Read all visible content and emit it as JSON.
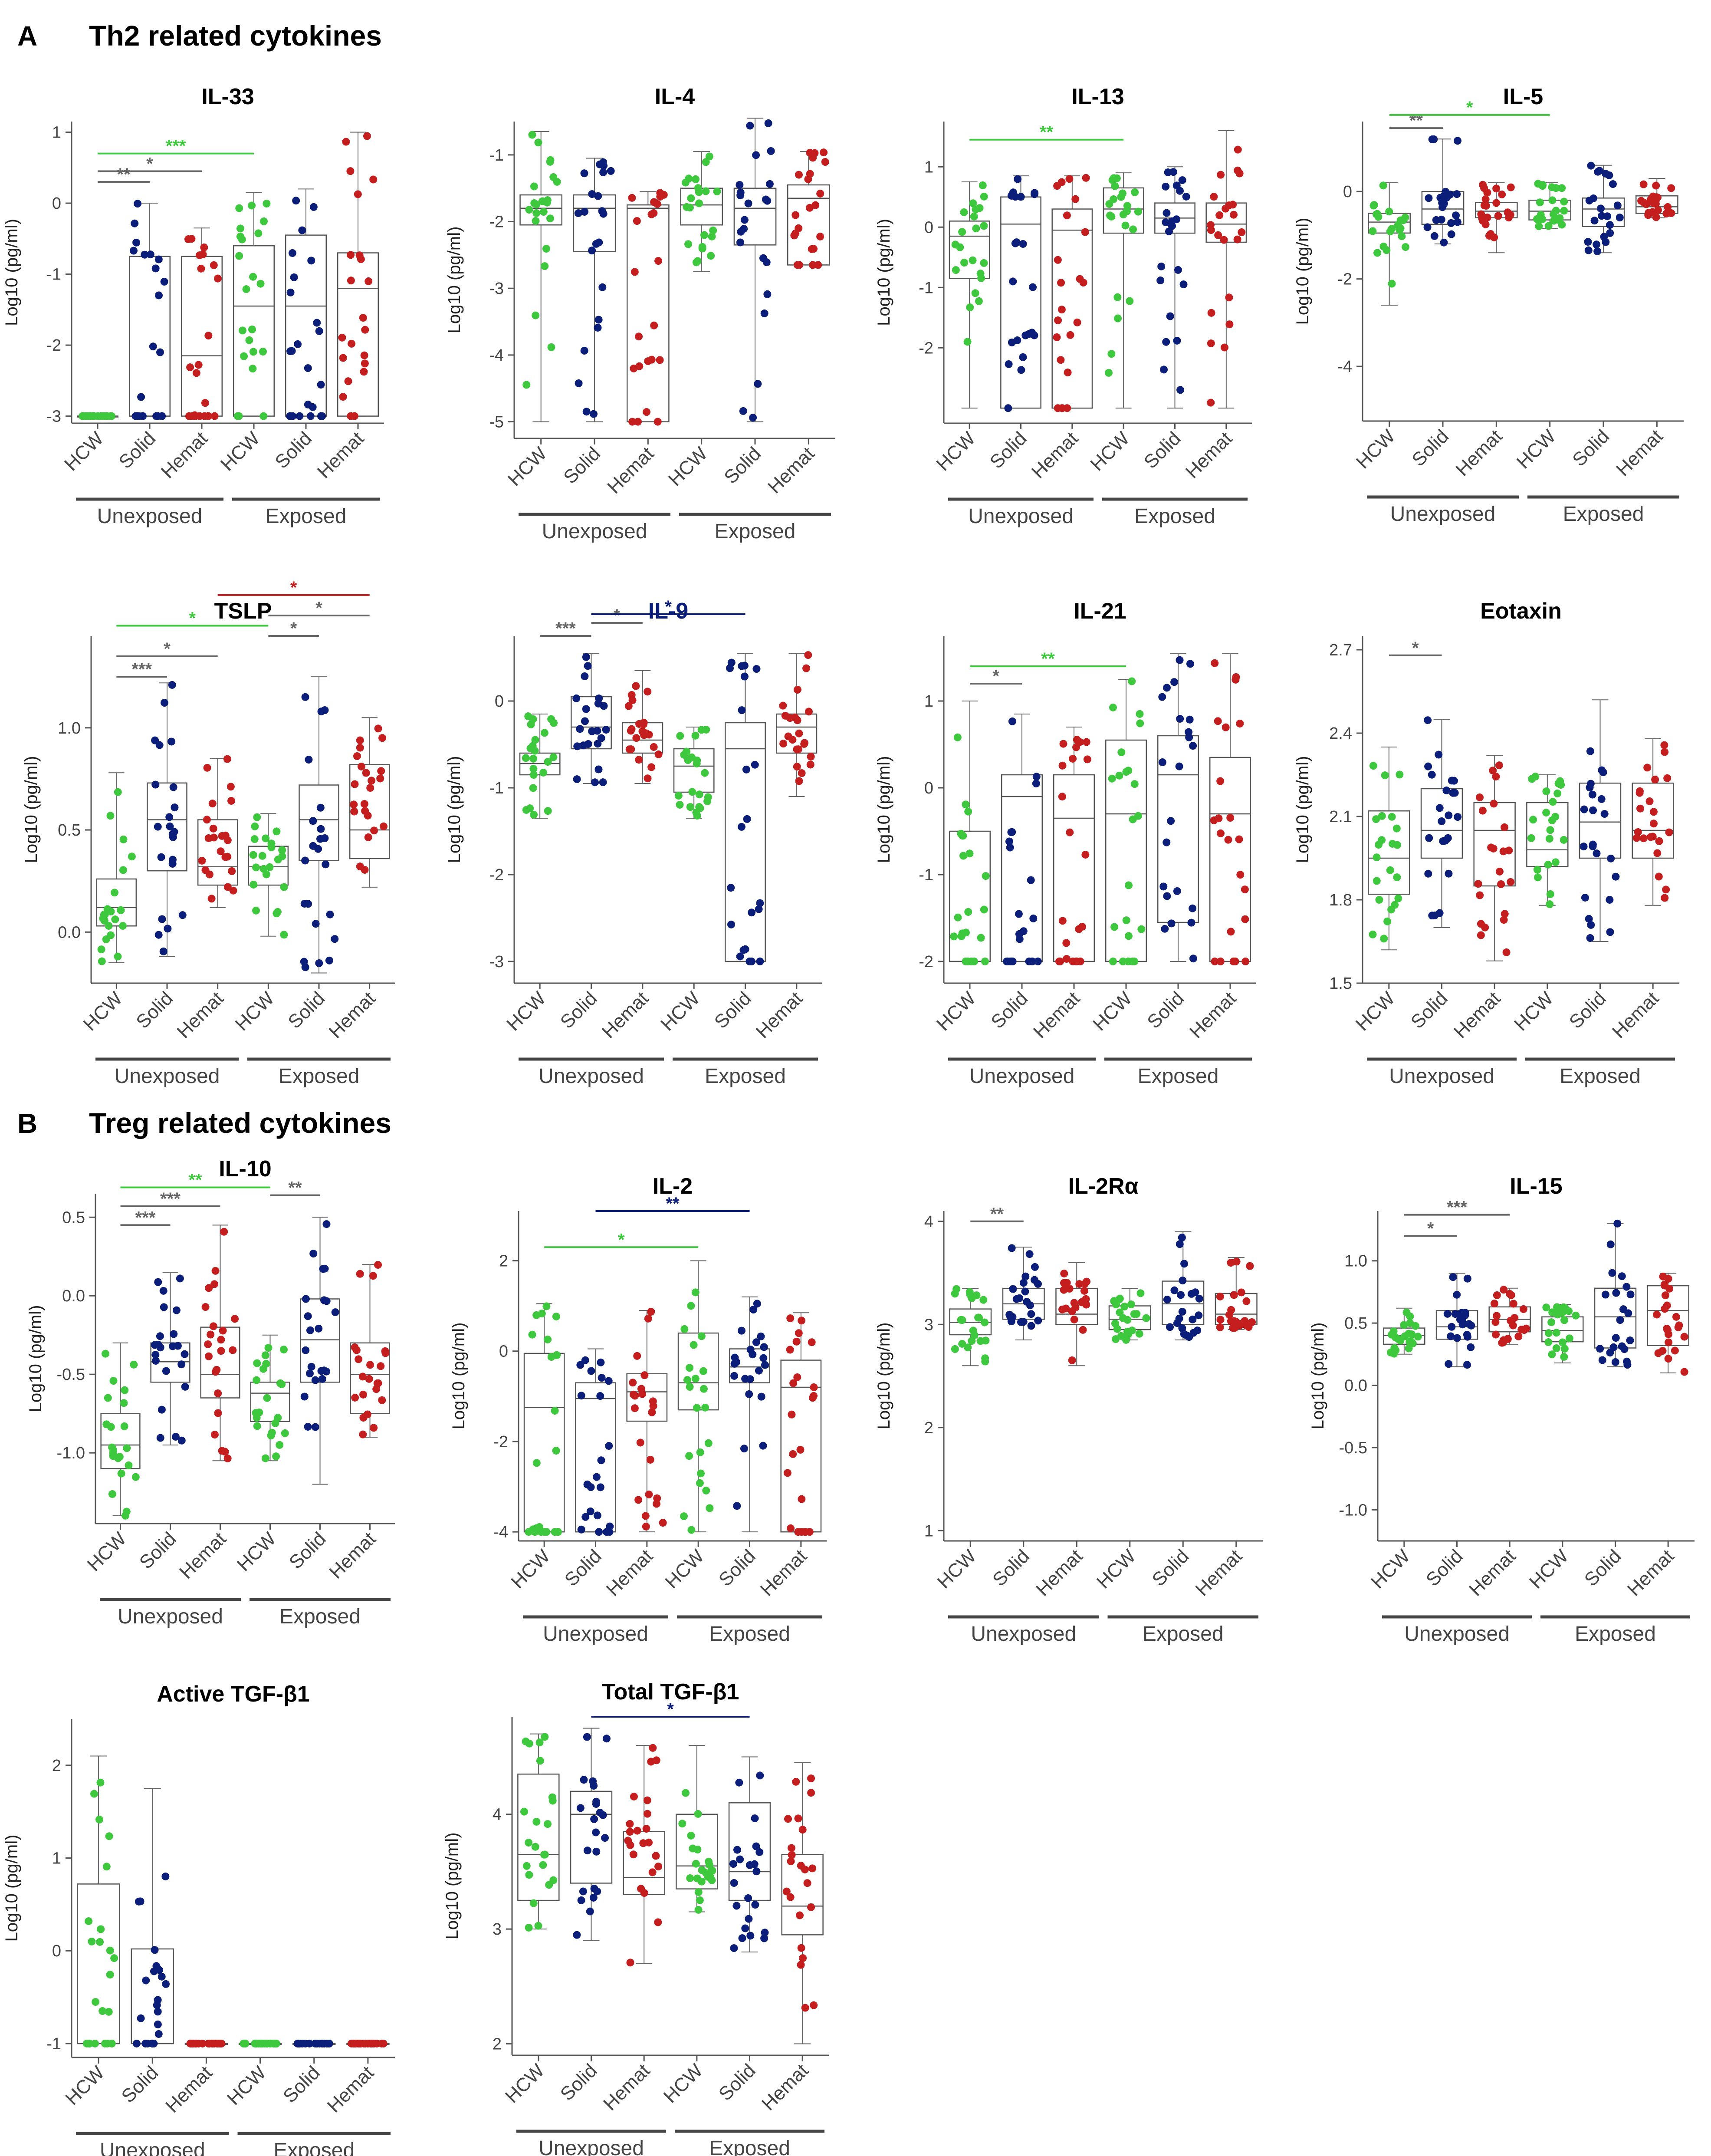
{
  "figure": {
    "panels": [
      {
        "letter": "A",
        "title": "Th2 related cytokines"
      },
      {
        "letter": "B",
        "title": "Treg related cytokines"
      }
    ],
    "ylabel": "Log10 (pg/ml)",
    "categories": [
      "HCW",
      "Solid",
      "Hemat",
      "HCW",
      "Solid",
      "Hemat"
    ],
    "groups": [
      "Unexposed",
      "Exposed"
    ],
    "series_colors": {
      "HCW": "#3ec83e",
      "Solid": "#0b1f7a",
      "Hemat": "#c41e1e"
    },
    "bracket_colors": {
      "gray": "#666666",
      "green": "#3ec83e",
      "navy": "#0b1f7a",
      "red": "#c41e1e"
    }
  },
  "chart_data": [
    {
      "type": "box",
      "title": "IL-33",
      "title_color": "#000000",
      "yticks": [
        -3,
        -2,
        -1,
        0,
        1
      ],
      "ylim": [
        -3.1,
        1.15
      ],
      "boxes": [
        {
          "q1": -3,
          "med": -3,
          "q3": -3,
          "lo": -3,
          "hi": -3
        },
        {
          "q1": -3,
          "med": -3,
          "q3": -0.75,
          "lo": -3,
          "hi": 0
        },
        {
          "q1": -3,
          "med": -2.15,
          "q3": -0.75,
          "lo": -3,
          "hi": -0.35
        },
        {
          "q1": -3,
          "med": -1.45,
          "q3": -0.6,
          "lo": -3,
          "hi": 0.15
        },
        {
          "q1": -3,
          "med": -1.45,
          "q3": -0.45,
          "lo": -3,
          "hi": 0.2
        },
        {
          "q1": -3,
          "med": -1.2,
          "q3": -0.7,
          "lo": -3,
          "hi": 1.0
        }
      ],
      "sig": [
        {
          "i": 0,
          "j": 1,
          "label": "**",
          "color": "gray",
          "y": 0.3
        },
        {
          "i": 0,
          "j": 2,
          "label": "*",
          "color": "gray",
          "y": 0.45
        },
        {
          "i": 0,
          "j": 3,
          "label": "***",
          "color": "green",
          "y": 0.7
        }
      ]
    },
    {
      "type": "box",
      "title": "IL-4",
      "title_color": "#000000",
      "yticks": [
        -5,
        -4,
        -3,
        -2,
        -1
      ],
      "ylim": [
        -5.25,
        -0.5
      ],
      "boxes": [
        {
          "q1": -2.05,
          "med": -1.8,
          "q3": -1.6,
          "lo": -5,
          "hi": -0.65
        },
        {
          "q1": -2.45,
          "med": -1.8,
          "q3": -1.6,
          "lo": -5,
          "hi": -1.05
        },
        {
          "q1": -5,
          "med": -1.8,
          "q3": -1.75,
          "lo": -5,
          "hi": -1.55
        },
        {
          "q1": -2.05,
          "med": -1.75,
          "q3": -1.5,
          "lo": -2.75,
          "hi": -0.95
        },
        {
          "q1": -2.35,
          "med": -1.8,
          "q3": -1.5,
          "lo": -5,
          "hi": -0.45
        },
        {
          "q1": -2.65,
          "med": -1.65,
          "q3": -1.45,
          "lo": -2.65,
          "hi": -0.95
        }
      ],
      "sig": []
    },
    {
      "type": "box",
      "title": "IL-13",
      "title_color": "#000000",
      "yticks": [
        -2,
        -1,
        0,
        1
      ],
      "ylim": [
        -3.25,
        1.75
      ],
      "boxes": [
        {
          "q1": -0.85,
          "med": -0.15,
          "q3": 0.1,
          "lo": -3,
          "hi": 0.75
        },
        {
          "q1": -3,
          "med": 0.05,
          "q3": 0.5,
          "lo": -3,
          "hi": 0.85
        },
        {
          "q1": -3,
          "med": -0.05,
          "q3": 0.3,
          "lo": -3,
          "hi": 0.85
        },
        {
          "q1": -0.1,
          "med": 0.3,
          "q3": 0.65,
          "lo": -3,
          "hi": 0.9
        },
        {
          "q1": -0.1,
          "med": 0.15,
          "q3": 0.4,
          "lo": -3,
          "hi": 1.0
        },
        {
          "q1": -0.25,
          "med": 0.05,
          "q3": 0.4,
          "lo": -3,
          "hi": 1.6
        }
      ],
      "sig": [
        {
          "i": 0,
          "j": 3,
          "label": "**",
          "color": "green",
          "y": 1.45
        }
      ]
    },
    {
      "type": "box",
      "title": "IL-5",
      "title_color": "#000000",
      "yticks": [
        -4,
        -2,
        0
      ],
      "ylim": [
        -5.25,
        1.6
      ],
      "boxes": [
        {
          "q1": -0.95,
          "med": -0.7,
          "q3": -0.5,
          "lo": -2.6,
          "hi": 0.2
        },
        {
          "q1": -0.75,
          "med": -0.4,
          "q3": 0.0,
          "lo": -1.2,
          "hi": 1.2
        },
        {
          "q1": -0.6,
          "med": -0.45,
          "q3": -0.25,
          "lo": -1.4,
          "hi": 0.2
        },
        {
          "q1": -0.65,
          "med": -0.45,
          "q3": -0.2,
          "lo": -0.85,
          "hi": 0.2
        },
        {
          "q1": -0.8,
          "med": -0.4,
          "q3": -0.15,
          "lo": -1.4,
          "hi": 0.6
        },
        {
          "q1": -0.5,
          "med": -0.35,
          "q3": -0.1,
          "lo": -0.6,
          "hi": 0.3
        }
      ],
      "sig": [
        {
          "i": 0,
          "j": 1,
          "label": "**",
          "color": "gray",
          "y": 1.45
        },
        {
          "i": 0,
          "j": 3,
          "label": "*",
          "color": "green",
          "y": 1.75
        }
      ]
    },
    {
      "type": "box",
      "title": "TSLP",
      "title_color": "#000000",
      "yticks": [
        0.0,
        0.5,
        1.0
      ],
      "ylim": [
        -0.25,
        1.45
      ],
      "boxes": [
        {
          "q1": 0.03,
          "med": 0.12,
          "q3": 0.26,
          "lo": -0.15,
          "hi": 0.78
        },
        {
          "q1": 0.3,
          "med": 0.55,
          "q3": 0.73,
          "lo": -0.12,
          "hi": 1.22
        },
        {
          "q1": 0.23,
          "med": 0.32,
          "q3": 0.55,
          "lo": 0.12,
          "hi": 0.85
        },
        {
          "q1": 0.23,
          "med": 0.32,
          "q3": 0.42,
          "lo": -0.02,
          "hi": 0.58
        },
        {
          "q1": 0.35,
          "med": 0.55,
          "q3": 0.72,
          "lo": -0.2,
          "hi": 1.25
        },
        {
          "q1": 0.36,
          "med": 0.5,
          "q3": 0.82,
          "lo": 0.22,
          "hi": 1.05
        }
      ],
      "sig": [
        {
          "i": 0,
          "j": 1,
          "label": "***",
          "color": "gray",
          "y": 1.25
        },
        {
          "i": 0,
          "j": 2,
          "label": "*",
          "color": "gray",
          "y": 1.35
        },
        {
          "i": 0,
          "j": 3,
          "label": "*",
          "color": "green",
          "y": 1.5
        },
        {
          "i": 3,
          "j": 4,
          "label": "*",
          "color": "gray",
          "y": 1.45
        },
        {
          "i": 3,
          "j": 5,
          "label": "*",
          "color": "gray",
          "y": 1.55
        },
        {
          "i": 2,
          "j": 5,
          "label": "*",
          "color": "red",
          "y": 1.65
        }
      ]
    },
    {
      "type": "box",
      "title": "IL-9",
      "title_color": "#0b1f7a",
      "yticks": [
        -3,
        -2,
        -1,
        0
      ],
      "ylim": [
        -3.25,
        0.75
      ],
      "boxes": [
        {
          "q1": -0.85,
          "med": -0.72,
          "q3": -0.6,
          "lo": -1.35,
          "hi": -0.15
        },
        {
          "q1": -0.55,
          "med": -0.3,
          "q3": 0.05,
          "lo": -0.95,
          "hi": 0.55
        },
        {
          "q1": -0.6,
          "med": -0.45,
          "q3": -0.25,
          "lo": -0.95,
          "hi": 0.35
        },
        {
          "q1": -1.05,
          "med": -0.75,
          "q3": -0.55,
          "lo": -1.35,
          "hi": -0.3
        },
        {
          "q1": -3,
          "med": -0.55,
          "q3": -0.25,
          "lo": -3,
          "hi": 0.55
        },
        {
          "q1": -0.6,
          "med": -0.3,
          "q3": -0.15,
          "lo": -1.1,
          "hi": 0.55
        }
      ],
      "sig": [
        {
          "i": 0,
          "j": 1,
          "label": "***",
          "color": "gray",
          "y": 0.75
        },
        {
          "i": 1,
          "j": 2,
          "label": "*",
          "color": "gray",
          "y": 0.9
        },
        {
          "i": 1,
          "j": 4,
          "label": "*",
          "color": "navy",
          "y": 1.0
        }
      ]
    },
    {
      "type": "box",
      "title": "IL-21",
      "title_color": "#000000",
      "yticks": [
        -2,
        -1,
        0,
        1
      ],
      "ylim": [
        -2.25,
        1.75
      ],
      "boxes": [
        {
          "q1": -2,
          "med": -2,
          "q3": -0.5,
          "lo": -2,
          "hi": 1.0
        },
        {
          "q1": -2,
          "med": -0.1,
          "q3": 0.15,
          "lo": -2,
          "hi": 0.85
        },
        {
          "q1": -2,
          "med": -0.35,
          "q3": 0.15,
          "lo": -2,
          "hi": 0.7
        },
        {
          "q1": -2,
          "med": -0.3,
          "q3": 0.55,
          "lo": -2,
          "hi": 1.25
        },
        {
          "q1": -1.55,
          "med": 0.15,
          "q3": 0.6,
          "lo": -2,
          "hi": 1.55
        },
        {
          "q1": -2,
          "med": -0.3,
          "q3": 0.35,
          "lo": -2,
          "hi": 1.55
        }
      ],
      "sig": [
        {
          "i": 0,
          "j": 1,
          "label": "*",
          "color": "gray",
          "y": 1.2
        },
        {
          "i": 0,
          "j": 3,
          "label": "**",
          "color": "green",
          "y": 1.4
        }
      ]
    },
    {
      "type": "box",
      "title": "Eotaxin",
      "title_color": "#000000",
      "yticks": [
        1.5,
        1.8,
        2.1,
        2.4,
        2.7
      ],
      "ylim": [
        1.5,
        2.75
      ],
      "boxes": [
        {
          "q1": 1.82,
          "med": 1.95,
          "q3": 2.12,
          "lo": 1.62,
          "hi": 2.35
        },
        {
          "q1": 1.95,
          "med": 2.05,
          "q3": 2.2,
          "lo": 1.7,
          "hi": 2.45
        },
        {
          "q1": 1.85,
          "med": 2.05,
          "q3": 2.15,
          "lo": 1.58,
          "hi": 2.32
        },
        {
          "q1": 1.92,
          "med": 1.98,
          "q3": 2.15,
          "lo": 1.78,
          "hi": 2.25
        },
        {
          "q1": 1.95,
          "med": 2.08,
          "q3": 2.22,
          "lo": 1.65,
          "hi": 2.52
        },
        {
          "q1": 1.95,
          "med": 2.05,
          "q3": 2.22,
          "lo": 1.78,
          "hi": 2.38
        }
      ],
      "sig": [
        {
          "i": 0,
          "j": 1,
          "label": "*",
          "color": "gray",
          "y": 2.68
        }
      ]
    },
    {
      "type": "box",
      "title": "IL-10",
      "title_color": "#000000",
      "yticks": [
        -1.0,
        -0.5,
        0.0,
        0.5
      ],
      "ylim": [
        -1.45,
        0.65
      ],
      "boxes": [
        {
          "q1": -1.1,
          "med": -0.95,
          "q3": -0.75,
          "lo": -1.4,
          "hi": -0.3
        },
        {
          "q1": -0.55,
          "med": -0.42,
          "q3": -0.3,
          "lo": -0.95,
          "hi": 0.15
        },
        {
          "q1": -0.65,
          "med": -0.5,
          "q3": -0.2,
          "lo": -1.05,
          "hi": 0.45
        },
        {
          "q1": -0.8,
          "med": -0.62,
          "q3": -0.55,
          "lo": -1.05,
          "hi": -0.25
        },
        {
          "q1": -0.55,
          "med": -0.28,
          "q3": -0.02,
          "lo": -1.2,
          "hi": 0.5
        },
        {
          "q1": -0.75,
          "med": -0.5,
          "q3": -0.3,
          "lo": -0.9,
          "hi": 0.2
        }
      ],
      "sig": [
        {
          "i": 0,
          "j": 1,
          "label": "***",
          "color": "gray",
          "y": 0.45
        },
        {
          "i": 0,
          "j": 2,
          "label": "***",
          "color": "gray",
          "y": 0.57
        },
        {
          "i": 0,
          "j": 3,
          "label": "**",
          "color": "green",
          "y": 0.69
        },
        {
          "i": 3,
          "j": 4,
          "label": "**",
          "color": "gray",
          "y": 0.64
        }
      ]
    },
    {
      "type": "box",
      "title": "IL-2",
      "title_color": "#000000",
      "yticks": [
        -4,
        -2,
        0,
        2
      ],
      "ylim": [
        -4.2,
        3.1
      ],
      "boxes": [
        {
          "q1": -4,
          "med": -1.25,
          "q3": -0.05,
          "lo": -4,
          "hi": 1.05
        },
        {
          "q1": -4,
          "med": -1.05,
          "q3": -0.7,
          "lo": -4,
          "hi": 0.05
        },
        {
          "q1": -1.55,
          "med": -0.9,
          "q3": -0.5,
          "lo": -4,
          "hi": 0.9
        },
        {
          "q1": -1.3,
          "med": -0.7,
          "q3": 0.4,
          "lo": -4,
          "hi": 2.0
        },
        {
          "q1": -0.7,
          "med": -0.35,
          "q3": 0.05,
          "lo": -4,
          "hi": 1.2
        },
        {
          "q1": -4,
          "med": -0.8,
          "q3": -0.2,
          "lo": -4,
          "hi": 0.85
        }
      ],
      "sig": [
        {
          "i": 0,
          "j": 3,
          "label": "*",
          "color": "green",
          "y": 2.3
        },
        {
          "i": 1,
          "j": 4,
          "label": "**",
          "color": "navy",
          "y": 3.1
        }
      ]
    },
    {
      "type": "box",
      "title": "IL-2Rα",
      "title_color": "#000000",
      "yticks": [
        1,
        2,
        3,
        4
      ],
      "ylim": [
        0.9,
        4.1
      ],
      "boxes": [
        {
          "q1": 2.9,
          "med": 3.02,
          "q3": 3.15,
          "lo": 2.6,
          "hi": 3.35
        },
        {
          "q1": 3.05,
          "med": 3.2,
          "q3": 3.35,
          "lo": 2.85,
          "hi": 3.75
        },
        {
          "q1": 3.0,
          "med": 3.1,
          "q3": 3.35,
          "lo": 2.6,
          "hi": 3.6
        },
        {
          "q1": 2.95,
          "med": 3.05,
          "q3": 3.18,
          "lo": 2.85,
          "hi": 3.35
        },
        {
          "q1": 3.0,
          "med": 3.2,
          "q3": 3.42,
          "lo": 2.85,
          "hi": 3.9
        },
        {
          "q1": 3.0,
          "med": 3.1,
          "q3": 3.3,
          "lo": 2.95,
          "hi": 3.65
        }
      ],
      "sig": [
        {
          "i": 0,
          "j": 1,
          "label": "**",
          "color": "gray",
          "y": 4.0
        }
      ]
    },
    {
      "type": "box",
      "title": "IL-15",
      "title_color": "#000000",
      "yticks": [
        -1.0,
        -0.5,
        0.0,
        0.5,
        1.0
      ],
      "ylim": [
        -1.25,
        1.4
      ],
      "boxes": [
        {
          "q1": 0.33,
          "med": 0.4,
          "q3": 0.46,
          "lo": 0.25,
          "hi": 0.62
        },
        {
          "q1": 0.37,
          "med": 0.47,
          "q3": 0.6,
          "lo": 0.15,
          "hi": 0.9
        },
        {
          "q1": 0.43,
          "med": 0.53,
          "q3": 0.63,
          "lo": 0.33,
          "hi": 0.78
        },
        {
          "q1": 0.35,
          "med": 0.44,
          "q3": 0.55,
          "lo": 0.18,
          "hi": 0.65
        },
        {
          "q1": 0.3,
          "med": 0.55,
          "q3": 0.78,
          "lo": 0.15,
          "hi": 1.3
        },
        {
          "q1": 0.32,
          "med": 0.6,
          "q3": 0.8,
          "lo": 0.1,
          "hi": 0.9
        }
      ],
      "sig": [
        {
          "i": 0,
          "j": 1,
          "label": "*",
          "color": "gray",
          "y": 1.2
        },
        {
          "i": 0,
          "j": 2,
          "label": "***",
          "color": "gray",
          "y": 1.37
        }
      ]
    },
    {
      "type": "box",
      "title": "Active TGF-β1",
      "title_color": "#000000",
      "yticks": [
        -1,
        0,
        1,
        2
      ],
      "ylim": [
        -1.15,
        2.5
      ],
      "boxes": [
        {
          "q1": -1,
          "med": -1,
          "q3": 0.72,
          "lo": -1,
          "hi": 2.1
        },
        {
          "q1": -1,
          "med": -1,
          "q3": 0.02,
          "lo": -1,
          "hi": 1.75
        },
        {
          "q1": -1,
          "med": -1,
          "q3": -1,
          "lo": -1,
          "hi": -1
        },
        {
          "q1": -1,
          "med": -1,
          "q3": -1,
          "lo": -1,
          "hi": -1
        },
        {
          "q1": -1,
          "med": -1,
          "q3": -1,
          "lo": -1,
          "hi": -1
        },
        {
          "q1": -1,
          "med": -1,
          "q3": -1,
          "lo": -1,
          "hi": -1
        }
      ],
      "sig": []
    },
    {
      "type": "box",
      "title": "Total TGF-β1",
      "title_color": "#000000",
      "yticks": [
        2,
        3,
        4
      ],
      "ylim": [
        1.9,
        4.85
      ],
      "boxes": [
        {
          "q1": 3.25,
          "med": 3.65,
          "q3": 4.35,
          "lo": 3.0,
          "hi": 4.7
        },
        {
          "q1": 3.4,
          "med": 4.0,
          "q3": 4.2,
          "lo": 2.9,
          "hi": 4.75
        },
        {
          "q1": 3.3,
          "med": 3.45,
          "q3": 3.85,
          "lo": 2.7,
          "hi": 4.6
        },
        {
          "q1": 3.35,
          "med": 3.55,
          "q3": 4.0,
          "lo": 3.15,
          "hi": 4.6
        },
        {
          "q1": 3.25,
          "med": 3.5,
          "q3": 4.1,
          "lo": 2.8,
          "hi": 4.5
        },
        {
          "q1": 2.95,
          "med": 3.2,
          "q3": 3.65,
          "lo": 2.0,
          "hi": 4.45
        }
      ],
      "sig": [
        {
          "i": 1,
          "j": 4,
          "label": "*",
          "color": "navy",
          "y": 4.85
        }
      ]
    }
  ]
}
